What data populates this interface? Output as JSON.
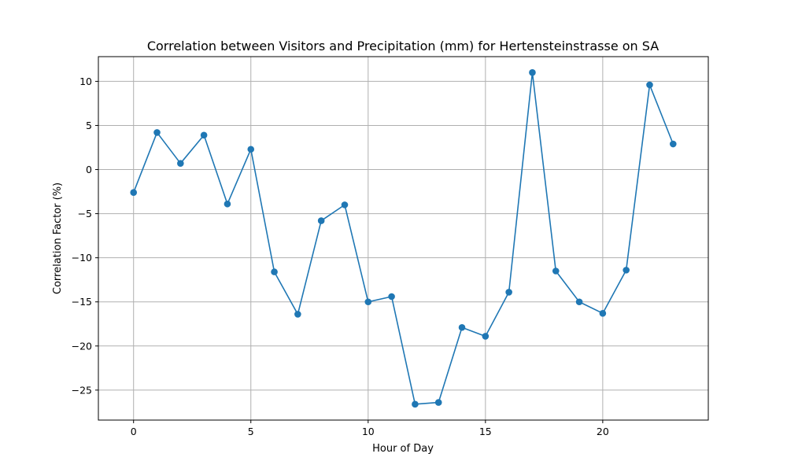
{
  "chart_data": {
    "type": "line",
    "title": "Correlation between Visitors and Precipitation (mm) for Hertensteinstrasse on SA",
    "xlabel": "Hour of Day",
    "ylabel": "Correlation Factor (%)",
    "xlim": [
      -1.5,
      24.5
    ],
    "ylim": [
      -28.4,
      12.8
    ],
    "xticks": [
      0,
      5,
      10,
      15,
      20
    ],
    "yticks": [
      -25,
      -20,
      -15,
      -10,
      -5,
      0,
      5,
      10
    ],
    "grid": true,
    "marker": "circle",
    "color": "#1f77b4",
    "x": [
      0,
      1,
      2,
      3,
      4,
      5,
      6,
      7,
      8,
      9,
      10,
      11,
      12,
      13,
      14,
      15,
      16,
      17,
      18,
      19,
      20,
      21,
      22,
      23
    ],
    "values": [
      -2.6,
      4.2,
      0.7,
      3.9,
      -3.9,
      2.3,
      -11.6,
      -16.4,
      -5.8,
      -4.0,
      -15.0,
      -14.4,
      -26.6,
      -26.4,
      -17.9,
      -18.9,
      -13.9,
      11.0,
      -11.5,
      -15.0,
      -16.3,
      -11.4,
      9.6,
      2.9
    ]
  }
}
